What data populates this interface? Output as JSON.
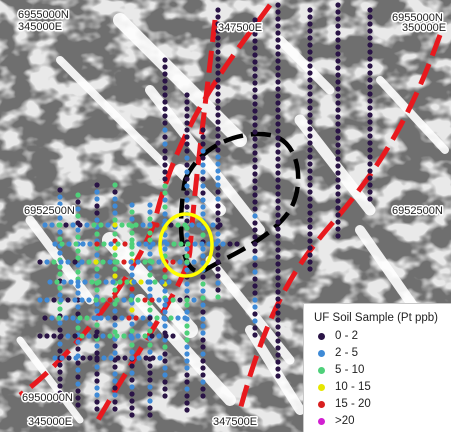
{
  "coords": {
    "top_left_n": "6955000N",
    "top_left_e": "345000E",
    "top_mid_e": "347500E",
    "top_right_n": "6955000N",
    "top_right_e": "350000E",
    "mid_left_n": "6952500N",
    "mid_right_n": "6952500N",
    "bottom_left_n": "6950000N",
    "bottom_left_e": "345000E",
    "bottom_mid_e": "347500E"
  },
  "legend": {
    "title": "UF Soil Sample (Pt ppb)",
    "items": [
      {
        "label": "0 - 2",
        "color": "#2a1446"
      },
      {
        "label": "2 - 5",
        "color": "#3f8ad6"
      },
      {
        "label": "5 - 10",
        "color": "#4fd07a"
      },
      {
        "label": "10 - 15",
        "color": "#e6e600"
      },
      {
        "label": "15 - 20",
        "color": "#d91f1f"
      },
      {
        "label": ">20",
        "color": "#d11fd1"
      }
    ]
  },
  "colors": {
    "background": "#6f6f6f",
    "fault_lines": "#e8191e",
    "intrusion_outline": "#000000",
    "target_circle": "#ffff00"
  }
}
